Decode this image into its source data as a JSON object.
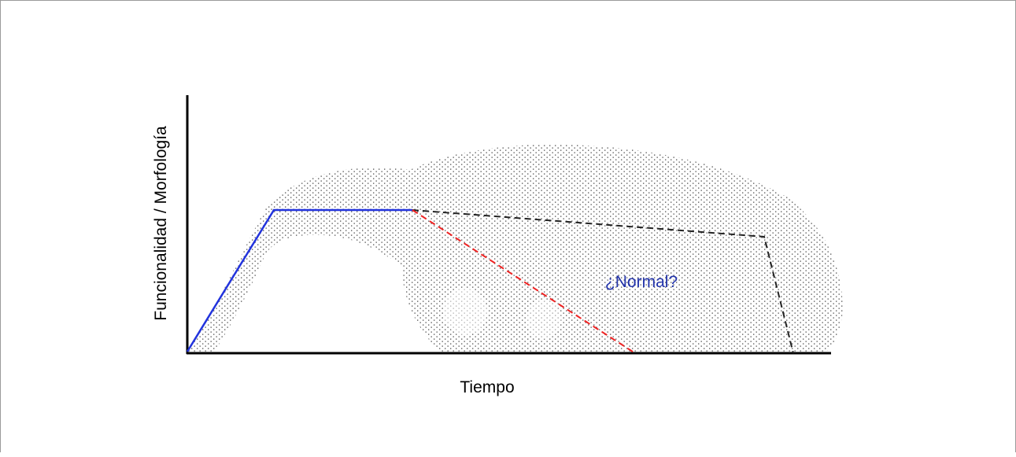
{
  "diagram": {
    "y_axis_label": "Funcionalidad / Morfología",
    "x_axis_label": "Tiempo",
    "region_label": "¿Normal?",
    "colors": {
      "axis": "#000000",
      "development_line": "#2233dd",
      "normal_aging_line": "#222222",
      "pathological_line": "#ee2222",
      "region_label": "#2233aa",
      "dot_pattern": "#444444"
    },
    "lines": [
      {
        "name": "development-plateau",
        "style": "solid",
        "color_key": "development_line"
      },
      {
        "name": "normal-aging",
        "style": "dashed",
        "color_key": "normal_aging_line"
      },
      {
        "name": "pathological-decline",
        "style": "dashed",
        "color_key": "pathological_line"
      }
    ]
  }
}
